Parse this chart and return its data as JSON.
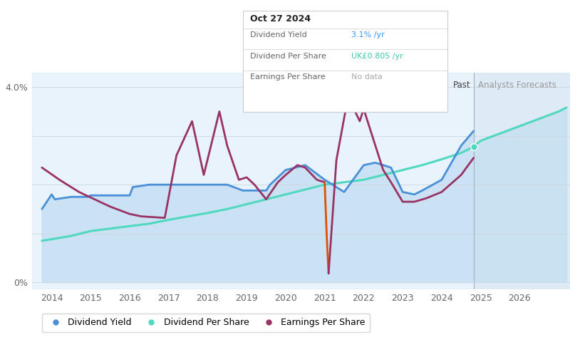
{
  "tooltip_date": "Oct 27 2024",
  "tooltip_yield_val": "3.1%",
  "tooltip_yield_color": "#3399ff",
  "tooltip_dps_val": "UK£0.805",
  "tooltip_dps_color": "#40c8b0",
  "tooltip_eps_val": "No data",
  "tooltip_eps_color": "#aaaaaa",
  "x_min": 2013.5,
  "x_max": 2027.3,
  "y_min": -0.15,
  "y_max": 4.3,
  "past_line_x": 2024.82,
  "bg_color": "#ffffff",
  "area_color": "#d6eaf8",
  "forecast_area_color": "#c8dff0",
  "dividend_yield_color": "#4a90d9",
  "dividend_per_share_color": "#50d8c0",
  "earnings_per_share_color": "#993366",
  "eps_orange_color": "#e05000",
  "past_label": "Past",
  "forecast_label": "Analysts Forecasts",
  "legend_items": [
    "Dividend Yield",
    "Dividend Per Share",
    "Earnings Per Share"
  ],
  "div_yield_x": [
    2013.75,
    2014.0,
    2014.08,
    2014.5,
    2014.92,
    2015.0,
    2015.5,
    2016.0,
    2016.08,
    2016.5,
    2016.92,
    2017.0,
    2017.5,
    2018.0,
    2018.5,
    2018.9,
    2019.0,
    2019.5,
    2019.6,
    2020.0,
    2020.5,
    2021.0,
    2021.5,
    2022.0,
    2022.3,
    2022.7,
    2023.0,
    2023.3,
    2023.5,
    2024.0,
    2024.5,
    2024.82
  ],
  "div_yield_y": [
    1.5,
    1.8,
    1.7,
    1.75,
    1.75,
    1.78,
    1.78,
    1.78,
    1.95,
    2.0,
    2.0,
    2.0,
    2.0,
    2.0,
    2.0,
    1.88,
    1.88,
    1.88,
    2.0,
    2.3,
    2.4,
    2.1,
    1.85,
    2.4,
    2.45,
    2.35,
    1.85,
    1.8,
    1.88,
    2.1,
    2.8,
    3.1
  ],
  "div_ps_x": [
    2013.75,
    2014.5,
    2015.0,
    2015.5,
    2016.0,
    2016.5,
    2017.0,
    2017.5,
    2018.0,
    2018.5,
    2019.0,
    2019.5,
    2020.0,
    2020.5,
    2021.0,
    2021.5,
    2022.0,
    2022.5,
    2023.0,
    2023.5,
    2024.0,
    2024.5,
    2024.82,
    2025.0,
    2025.5,
    2026.0,
    2026.5,
    2027.0,
    2027.2
  ],
  "div_ps_y": [
    0.85,
    0.95,
    1.05,
    1.1,
    1.15,
    1.2,
    1.28,
    1.35,
    1.42,
    1.5,
    1.6,
    1.7,
    1.8,
    1.9,
    2.0,
    2.05,
    2.1,
    2.2,
    2.3,
    2.4,
    2.52,
    2.65,
    2.78,
    2.9,
    3.05,
    3.2,
    3.35,
    3.5,
    3.58
  ],
  "eps_x": [
    2013.75,
    2014.2,
    2014.7,
    2015.1,
    2015.5,
    2016.0,
    2016.3,
    2016.9,
    2017.2,
    2017.6,
    2017.9,
    2018.3,
    2018.5,
    2018.8,
    2019.0,
    2019.2,
    2019.5,
    2019.8,
    2020.0,
    2020.3,
    2020.5,
    2020.8,
    2021.0,
    2021.05,
    2021.1,
    2021.3,
    2021.6,
    2021.9,
    2022.0,
    2022.3,
    2022.5,
    2022.7,
    2023.0,
    2023.3,
    2023.6,
    2024.0,
    2024.5,
    2024.82
  ],
  "eps_y": [
    2.35,
    2.1,
    1.85,
    1.7,
    1.55,
    1.4,
    1.35,
    1.32,
    2.6,
    3.3,
    2.2,
    3.5,
    2.8,
    2.1,
    2.15,
    2.0,
    1.7,
    2.05,
    2.2,
    2.4,
    2.35,
    2.1,
    2.05,
    1.0,
    0.18,
    2.5,
    3.8,
    3.3,
    3.55,
    2.8,
    2.3,
    2.05,
    1.65,
    1.65,
    1.72,
    1.85,
    2.2,
    2.55
  ],
  "eps_orange_segment_idx": [
    22,
    24
  ]
}
